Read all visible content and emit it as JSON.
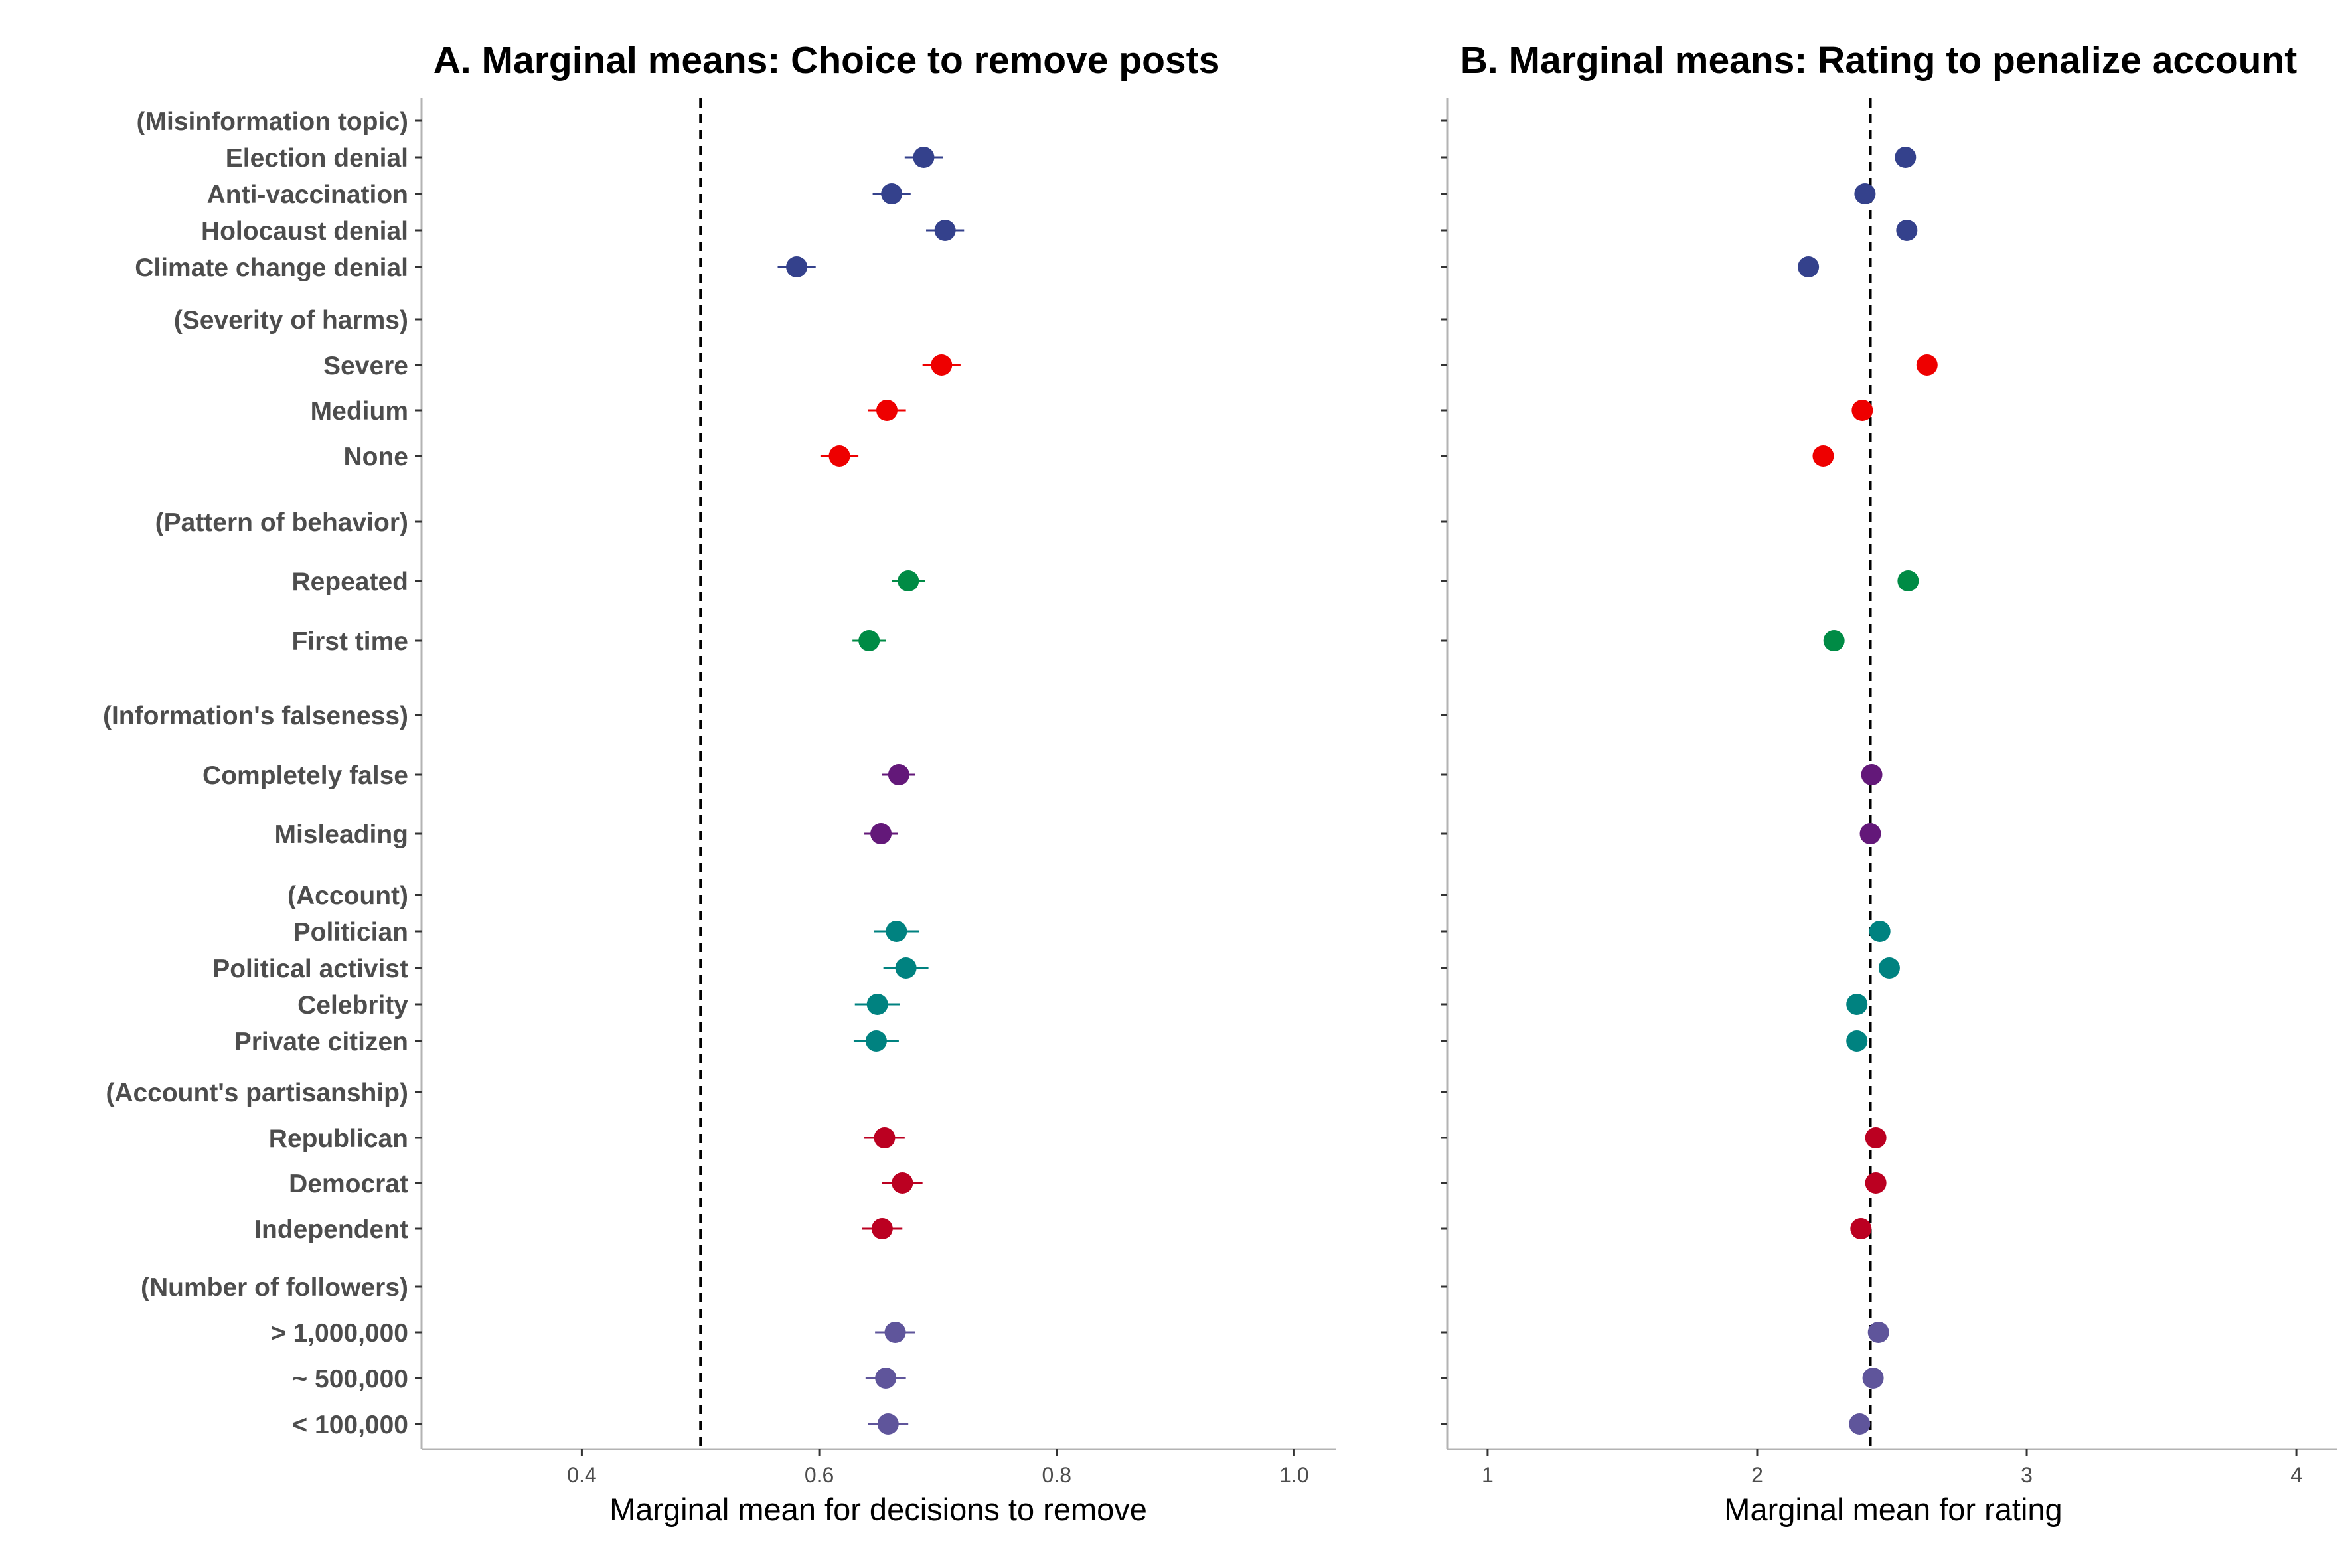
{
  "chart_data": [
    {
      "type": "scatter",
      "title": "A. Marginal means: Choice to remove posts",
      "xlabel": "Marginal mean for decisions to remove",
      "xlim": [
        0.265,
        1.035
      ],
      "xticks": [
        0.4,
        0.6,
        0.8,
        1.0
      ],
      "xtick_labels": [
        "0.4",
        "0.6",
        "0.8",
        "1.0"
      ],
      "reference_line": 0.5,
      "grid": false,
      "rows": [
        {
          "label": "(Misinformation topic)",
          "header": true
        },
        {
          "label": "Election denial",
          "group": "topic",
          "estimate": 0.688,
          "lower": 0.672,
          "upper": 0.704
        },
        {
          "label": "Anti-vaccination",
          "group": "topic",
          "estimate": 0.661,
          "lower": 0.645,
          "upper": 0.677
        },
        {
          "label": "Holocaust denial",
          "group": "topic",
          "estimate": 0.706,
          "lower": 0.69,
          "upper": 0.722
        },
        {
          "label": "Climate change denial",
          "group": "topic",
          "estimate": 0.581,
          "lower": 0.565,
          "upper": 0.597
        },
        {
          "label": "(Severity of harms)",
          "header": true
        },
        {
          "label": "Severe",
          "group": "severity",
          "estimate": 0.703,
          "lower": 0.687,
          "upper": 0.719
        },
        {
          "label": "Medium",
          "group": "severity",
          "estimate": 0.657,
          "lower": 0.641,
          "upper": 0.673
        },
        {
          "label": "None",
          "group": "severity",
          "estimate": 0.617,
          "lower": 0.601,
          "upper": 0.633
        },
        {
          "label": "(Pattern of behavior)",
          "header": true
        },
        {
          "label": "Repeated",
          "group": "pattern",
          "estimate": 0.675,
          "lower": 0.661,
          "upper": 0.689
        },
        {
          "label": "First time",
          "group": "pattern",
          "estimate": 0.642,
          "lower": 0.628,
          "upper": 0.656
        },
        {
          "label": "(Information's falseness)",
          "header": true
        },
        {
          "label": "Completely false",
          "group": "falseness",
          "estimate": 0.667,
          "lower": 0.653,
          "upper": 0.681
        },
        {
          "label": "Misleading",
          "group": "falseness",
          "estimate": 0.652,
          "lower": 0.638,
          "upper": 0.666
        },
        {
          "label": "(Account)",
          "header": true
        },
        {
          "label": "Politician",
          "group": "account",
          "estimate": 0.665,
          "lower": 0.646,
          "upper": 0.684
        },
        {
          "label": "Political activist",
          "group": "account",
          "estimate": 0.673,
          "lower": 0.654,
          "upper": 0.692
        },
        {
          "label": "Celebrity",
          "group": "account",
          "estimate": 0.649,
          "lower": 0.63,
          "upper": 0.668
        },
        {
          "label": "Private citizen",
          "group": "account",
          "estimate": 0.648,
          "lower": 0.629,
          "upper": 0.667
        },
        {
          "label": "(Account's partisanship)",
          "header": true
        },
        {
          "label": "Republican",
          "group": "partisanship",
          "estimate": 0.655,
          "lower": 0.638,
          "upper": 0.672
        },
        {
          "label": "Democrat",
          "group": "partisanship",
          "estimate": 0.67,
          "lower": 0.653,
          "upper": 0.687
        },
        {
          "label": "Independent",
          "group": "partisanship",
          "estimate": 0.653,
          "lower": 0.636,
          "upper": 0.67
        },
        {
          "label": "(Number of followers)",
          "header": true
        },
        {
          "label": "> 1,000,000",
          "group": "followers",
          "estimate": 0.664,
          "lower": 0.647,
          "upper": 0.681
        },
        {
          "label": "~ 500,000",
          "group": "followers",
          "estimate": 0.656,
          "lower": 0.639,
          "upper": 0.673
        },
        {
          "label": "< 100,000",
          "group": "followers",
          "estimate": 0.658,
          "lower": 0.641,
          "upper": 0.675
        }
      ]
    },
    {
      "type": "scatter",
      "title": "B. Marginal means: Rating to penalize account",
      "xlabel": "Marginal mean for rating",
      "xlim": [
        0.85,
        4.15
      ],
      "xticks": [
        1,
        2,
        3,
        4
      ],
      "xtick_labels": [
        "1",
        "2",
        "3",
        "4"
      ],
      "reference_line": 2.42,
      "grid": false,
      "rows": [
        {
          "label": "(Misinformation topic)",
          "header": true
        },
        {
          "label": "Election denial",
          "group": "topic",
          "estimate": 2.55
        },
        {
          "label": "Anti-vaccination",
          "group": "topic",
          "estimate": 2.4
        },
        {
          "label": "Holocaust denial",
          "group": "topic",
          "estimate": 2.555
        },
        {
          "label": "Climate change denial",
          "group": "topic",
          "estimate": 2.19
        },
        {
          "label": "(Severity of harms)",
          "header": true
        },
        {
          "label": "Severe",
          "group": "severity",
          "estimate": 2.63
        },
        {
          "label": "Medium",
          "group": "severity",
          "estimate": 2.39
        },
        {
          "label": "None",
          "group": "severity",
          "estimate": 2.245
        },
        {
          "label": "(Pattern of behavior)",
          "header": true
        },
        {
          "label": "Repeated",
          "group": "pattern",
          "estimate": 2.56
        },
        {
          "label": "First time",
          "group": "pattern",
          "estimate": 2.285
        },
        {
          "label": "(Information's falseness)",
          "header": true
        },
        {
          "label": "Completely false",
          "group": "falseness",
          "estimate": 2.425
        },
        {
          "label": "Misleading",
          "group": "falseness",
          "estimate": 2.42
        },
        {
          "label": "(Account)",
          "header": true
        },
        {
          "label": "Politician",
          "group": "account",
          "estimate": 2.455
        },
        {
          "label": "Political activist",
          "group": "account",
          "estimate": 2.49
        },
        {
          "label": "Celebrity",
          "group": "account",
          "estimate": 2.37
        },
        {
          "label": "Private citizen",
          "group": "account",
          "estimate": 2.37
        },
        {
          "label": "(Account's partisanship)",
          "header": true
        },
        {
          "label": "Republican",
          "group": "partisanship",
          "estimate": 2.44
        },
        {
          "label": "Democrat",
          "group": "partisanship",
          "estimate": 2.44
        },
        {
          "label": "Independent",
          "group": "partisanship",
          "estimate": 2.385
        },
        {
          "label": "(Number of followers)",
          "header": true
        },
        {
          "label": "> 1,000,000",
          "group": "followers",
          "estimate": 2.45
        },
        {
          "label": "~ 500,000",
          "group": "followers",
          "estimate": 2.43
        },
        {
          "label": "< 100,000",
          "group": "followers",
          "estimate": 2.38
        }
      ]
    }
  ],
  "colors": {
    "topic": "#34418c",
    "severity": "#ee0000",
    "pattern": "#008b45",
    "falseness": "#631879",
    "account": "#008280",
    "partisanship": "#bb0021",
    "followers": "#5f559b",
    "axis": "#b3b3b3",
    "text": "#4d4d4d",
    "reference": "#000000"
  }
}
